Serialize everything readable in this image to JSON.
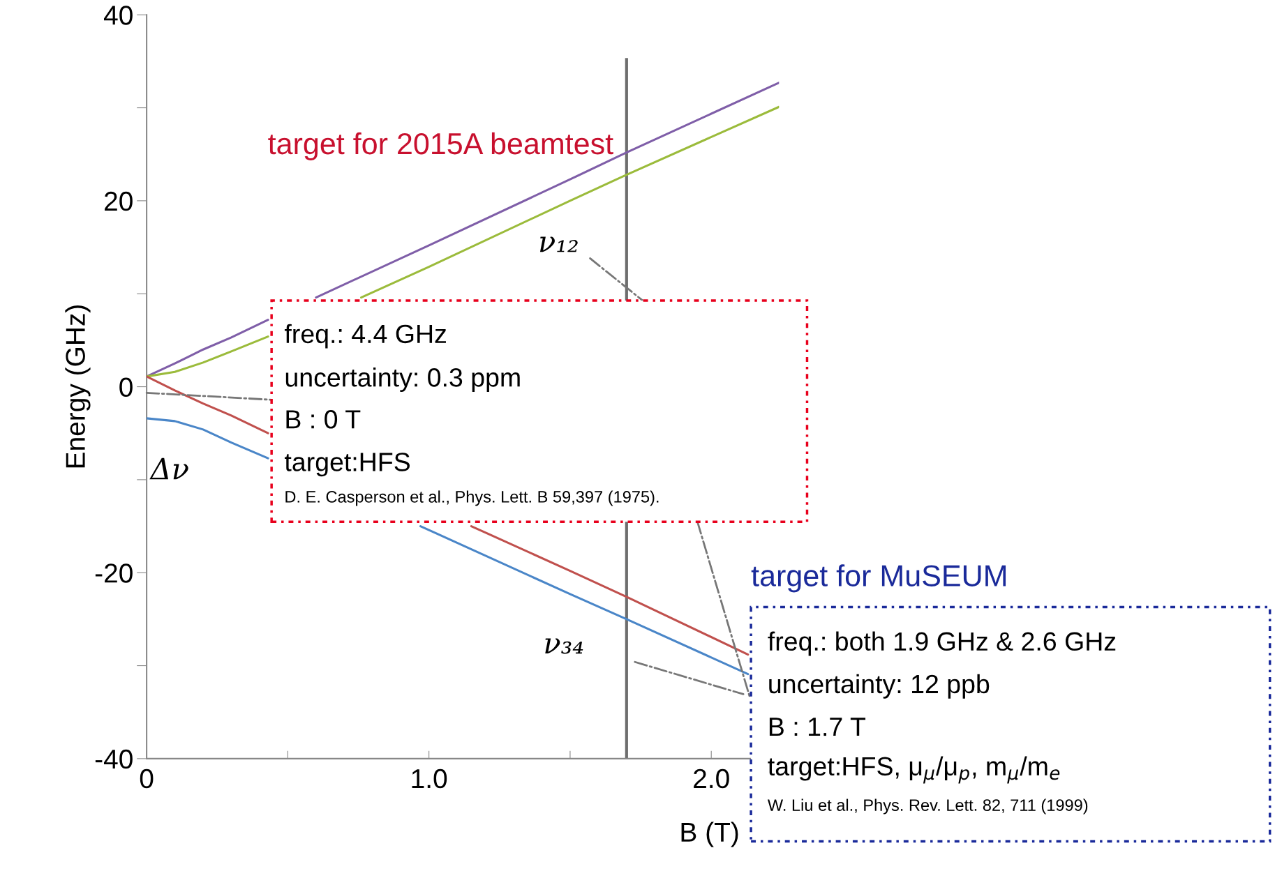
{
  "chart_data": {
    "type": "line",
    "xlabel": "B (T)",
    "ylabel": "Energy (GHz)",
    "xlim": [
      0,
      2.24
    ],
    "ylim": [
      -40,
      40
    ],
    "xticks": [
      {
        "value": 0,
        "label": "0"
      },
      {
        "value": 0.5,
        "label": null
      },
      {
        "value": 1.0,
        "label": "1.0"
      },
      {
        "value": 1.5,
        "label": null
      },
      {
        "value": 2.0,
        "label": "2.0"
      }
    ],
    "yticks": [
      -40,
      {
        "value": -30,
        "label": null
      },
      -20,
      {
        "value": -10,
        "label": null
      },
      0,
      {
        "value": 10,
        "label": null
      },
      20,
      {
        "value": 30,
        "label": null
      },
      40
    ],
    "series": [
      {
        "color": "#7f5ea8",
        "x": [
          0,
          0.1,
          0.2,
          0.3,
          0.43,
          0.5,
          0.6,
          1.0,
          1.5,
          1.7,
          2.24
        ],
        "values": [
          1.1,
          2.5,
          4.0,
          5.3,
          7.2,
          null,
          9.6,
          15.2,
          22.3,
          25.2,
          32.7
        ]
      },
      {
        "color": "#9bbb3b",
        "x": [
          0,
          0.1,
          0.2,
          0.3,
          0.43,
          0.6,
          0.76,
          1.0,
          1.5,
          1.7,
          2.24
        ],
        "values": [
          1.1,
          1.6,
          2.6,
          3.8,
          5.4,
          null,
          9.6,
          12.9,
          20.0,
          22.8,
          30.1
        ]
      },
      {
        "color": "#c0504d",
        "x": [
          0,
          0.1,
          0.2,
          0.3,
          0.43,
          0.8,
          1.15,
          1.5,
          1.7,
          2.13
        ],
        "values": [
          1.1,
          -0.4,
          -1.8,
          -3.1,
          -5.0,
          null,
          -15.0,
          -19.8,
          -22.6,
          -28.8
        ]
      },
      {
        "color": "#4a86c8",
        "x": [
          0,
          0.1,
          0.2,
          0.3,
          0.43,
          0.7,
          0.97,
          1.5,
          1.7,
          2.13
        ],
        "values": [
          -3.4,
          -3.7,
          -4.6,
          -6.0,
          -7.7,
          null,
          -15.0,
          -22.3,
          -25.0,
          -30.9
        ]
      }
    ],
    "ref_lines": [
      {
        "axis": "x",
        "value": 1.7,
        "color": "#6e6e6e"
      }
    ],
    "grid": false,
    "legend": false,
    "annotations": [
      "target for 2015A beamtest",
      "ν₁₂",
      "ν₃₄",
      "Δν",
      "freq.: 4.4 GHz",
      "uncertainty: 0.3 ppm",
      "B : 0 T",
      "target:HFS",
      "D. E. Casperson et al., Phys. Lett. B 59,397 (1975).",
      "target for MuSEUM",
      "freq.: both 1.9 GHz & 2.6 GHz",
      "uncertainty: 12 ppb",
      "B : 1.7 T",
      "target:HFS, μ$_{μ}$/μ$_{p}$, m$_{μ}$/m$_{e}$",
      "W. Liu et al., Phys. Rev. Lett. 82, 711 (1999)"
    ]
  }
}
